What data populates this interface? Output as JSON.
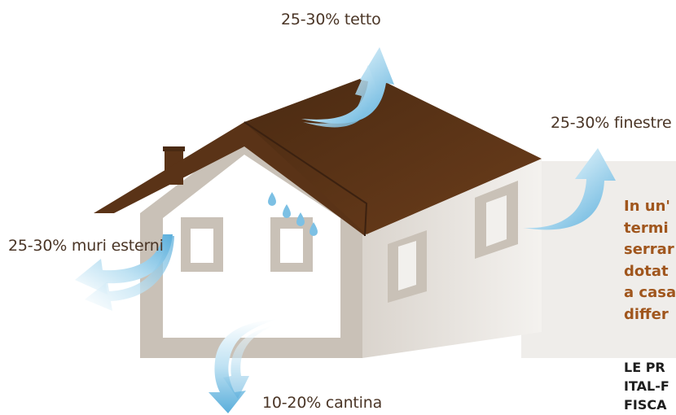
{
  "labels": {
    "roof": "25-30% tetto",
    "windows": "25-30% finestre",
    "walls": "25-30% muri esterni",
    "cellar": "10-20% cantina"
  },
  "info_text": {
    "lines": [
      "In un'",
      "termi",
      "serrar",
      "dotat",
      "a casa",
      "differ"
    ]
  },
  "info_caps": {
    "lines": [
      "LE PR",
      "ITAL-F",
      "FISCA"
    ]
  },
  "colors": {
    "roof": "#5a3317",
    "house_front": "#ffffff",
    "house_side": "#e9e5e0",
    "house_frame": "#c9c1b7",
    "arrow": "#7cc0e4",
    "label_text": "#4a3526",
    "info_text": "#a0561d"
  },
  "icons": [
    "house-illustration",
    "heat-loss-arrow",
    "water-drops-icon",
    "chimney"
  ]
}
